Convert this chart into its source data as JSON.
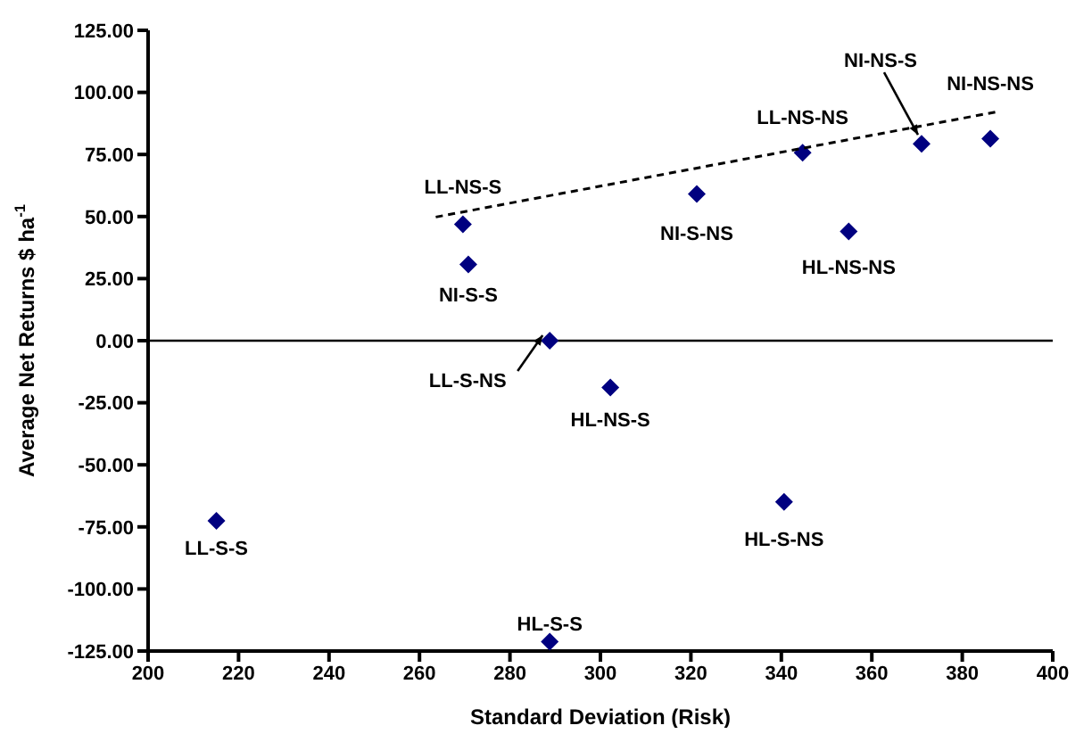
{
  "chart_data": {
    "type": "scatter",
    "xlabel": "Standard Deviation (Risk)",
    "ylabel": "Average Net Returns $ ha$^{-1}$",
    "xlim": [
      200,
      400
    ],
    "xticks": [
      200,
      220,
      240,
      260,
      280,
      300,
      320,
      340,
      360,
      380,
      400
    ],
    "ylim": [
      -125,
      125
    ],
    "yticks": [
      {
        "value": -125,
        "label": "-125.00"
      },
      {
        "value": -100,
        "label": "-100.00"
      },
      {
        "value": -75,
        "label": "-75.00"
      },
      {
        "value": -50,
        "label": "-50.00"
      },
      {
        "value": -25,
        "label": "-25.00"
      },
      {
        "value": 0,
        "label": "0.00"
      },
      {
        "value": 25,
        "label": "25.00"
      },
      {
        "value": 50,
        "label": "50.00"
      },
      {
        "value": 75,
        "label": "75.00"
      },
      {
        "value": 100,
        "label": "100.00"
      },
      {
        "value": 125,
        "label": "125.00"
      }
    ],
    "grid": false,
    "legend": false,
    "marker": "diamond",
    "series": [
      {
        "color": "#000080",
        "x": [
          269.6,
          270.8,
          321.3,
          344.7,
          371.0,
          386.2,
          354.9,
          288.8,
          302.2,
          340.6,
          288.8,
          215.1
        ],
        "values": [
          46.9,
          30.7,
          59.1,
          75.7,
          79.3,
          81.4,
          44.0,
          0,
          -18.9,
          -64.9,
          -121.2,
          -72.6
        ]
      },
      {
        "type": "line",
        "color": "#000000",
        "line_style": "dashed",
        "marker": "none",
        "x": [
          263.6,
          388.3
        ],
        "values": [
          49.8,
          92.4
        ]
      }
    ],
    "ref_lines": [
      {
        "axis": "y",
        "value": 0,
        "color": "#000000"
      }
    ],
    "annotations": [
      {
        "text": "LL-NS-S",
        "x": 269.6,
        "y": 46.9
      },
      {
        "text": "NI-S-S",
        "x": 270.8,
        "y": 30.7
      },
      {
        "text": "NI-S-NS",
        "x": 321.3,
        "y": 59.1
      },
      {
        "text": "LL-NS-NS",
        "x": 344.7,
        "y": 75.7
      },
      {
        "text": "NI-NS-S",
        "x": 371.0,
        "y": 79.3
      },
      {
        "text": "NI-NS-NS",
        "x": 386.2,
        "y": 81.4
      },
      {
        "text": "HL-NS-NS",
        "x": 354.9,
        "y": 44.0
      },
      {
        "text": "LL-S-NS",
        "x": 288.8,
        "y": 0
      },
      {
        "text": "HL-NS-S",
        "x": 302.2,
        "y": -18.9
      },
      {
        "text": "HL-S-NS",
        "x": 340.6,
        "y": -64.9
      },
      {
        "text": "HL-S-S",
        "x": 288.8,
        "y": -121.2
      },
      {
        "text": "LL-S-S",
        "x": 215.1,
        "y": -72.6
      }
    ]
  }
}
